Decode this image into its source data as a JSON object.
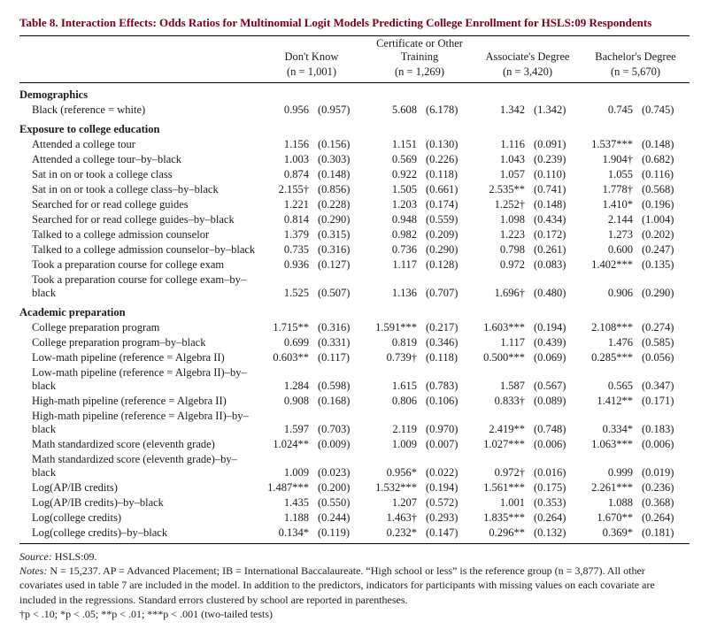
{
  "title": "Table 8. Interaction Effects: Odds Ratios for Multinomial Logit Models Predicting College Enrollment for HSLS:09 Respondents",
  "columns": {
    "c1": {
      "label": "Don't Know",
      "n": "(n = 1,001)"
    },
    "c2": {
      "label": "Certificate or Other Training",
      "n": "(n = 1,269)"
    },
    "c3": {
      "label": "Associate's Degree",
      "n": "(n = 3,420)"
    },
    "c4": {
      "label": "Bachelor's Degree",
      "n": "(n = 5,670)"
    }
  },
  "sections": {
    "demog": {
      "header": "Demographics",
      "rows": {
        "r1": {
          "label": "Black (reference = white)",
          "v1": "0.956",
          "s1": "(0.957)",
          "v2": "5.608",
          "s2": "(6.178)",
          "v3": "1.342",
          "s3": "(1.342)",
          "v4": "0.745",
          "s4": "(0.745)"
        }
      }
    },
    "expo": {
      "header": "Exposure to college education",
      "rows": {
        "r1": {
          "label": "Attended a college tour",
          "v1": "1.156",
          "s1": "(0.156)",
          "v2": "1.151",
          "s2": "(0.130)",
          "v3": "1.116",
          "s3": "(0.091)",
          "v4": "1.537***",
          "s4": "(0.148)"
        },
        "r2": {
          "label": "Attended a college tour–by–black",
          "v1": "1.003",
          "s1": "(0.303)",
          "v2": "0.569",
          "s2": "(0.226)",
          "v3": "1.043",
          "s3": "(0.239)",
          "v4": "1.904†",
          "s4": "(0.682)"
        },
        "r3": {
          "label": "Sat in on or took a college class",
          "v1": "0.874",
          "s1": "(0.148)",
          "v2": "0.922",
          "s2": "(0.118)",
          "v3": "1.057",
          "s3": "(0.110)",
          "v4": "1.055",
          "s4": "(0.116)"
        },
        "r4": {
          "label": "Sat in on or took a college class–by–black",
          "v1": "2.155†",
          "s1": "(0.856)",
          "v2": "1.505",
          "s2": "(0.661)",
          "v3": "2.535**",
          "s3": "(0.741)",
          "v4": "1.778†",
          "s4": "(0.568)"
        },
        "r5": {
          "label": "Searched for or read college guides",
          "v1": "1.221",
          "s1": "(0.228)",
          "v2": "1.203",
          "s2": "(0.174)",
          "v3": "1.252†",
          "s3": "(0.148)",
          "v4": "1.410*",
          "s4": "(0.196)"
        },
        "r6": {
          "label": "Searched for or read college guides–by–black",
          "v1": "0.814",
          "s1": "(0.290)",
          "v2": "0.948",
          "s2": "(0.559)",
          "v3": "1.098",
          "s3": "(0.434)",
          "v4": "2.144",
          "s4": "(1.004)"
        },
        "r7": {
          "label": "Talked to a college admission counselor",
          "v1": "1.379",
          "s1": "(0.315)",
          "v2": "0.982",
          "s2": "(0.209)",
          "v3": "1.223",
          "s3": "(0.172)",
          "v4": "1.273",
          "s4": "(0.202)"
        },
        "r8": {
          "label": "Talked to a college admission counselor–by–black",
          "v1": "0.735",
          "s1": "(0.316)",
          "v2": "0.736",
          "s2": "(0.290)",
          "v3": "0.798",
          "s3": "(0.261)",
          "v4": "0.600",
          "s4": "(0.247)"
        },
        "r9": {
          "label": "Took a preparation course for college exam",
          "v1": "0.936",
          "s1": "(0.127)",
          "v2": "1.117",
          "s2": "(0.128)",
          "v3": "0.972",
          "s3": "(0.083)",
          "v4": "1.402***",
          "s4": "(0.135)"
        },
        "r10": {
          "label": "Took a preparation course for college exam–by–black",
          "v1": "1.525",
          "s1": "(0.507)",
          "v2": "1.136",
          "s2": "(0.707)",
          "v3": "1.696†",
          "s3": "(0.480)",
          "v4": "0.906",
          "s4": "(0.290)"
        }
      }
    },
    "acad": {
      "header": "Academic preparation",
      "rows": {
        "r1": {
          "label": "College preparation program",
          "v1": "1.715**",
          "s1": "(0.316)",
          "v2": "1.591***",
          "s2": "(0.217)",
          "v3": "1.603***",
          "s3": "(0.194)",
          "v4": "2.108***",
          "s4": "(0.274)"
        },
        "r2": {
          "label": "College preparation program–by–black",
          "v1": "0.699",
          "s1": "(0.331)",
          "v2": "0.819",
          "s2": "(0.346)",
          "v3": "1.117",
          "s3": "(0.439)",
          "v4": "1.476",
          "s4": "(0.585)"
        },
        "r3": {
          "label": "Low-math pipeline (reference = Algebra II)",
          "v1": "0.603**",
          "s1": "(0.117)",
          "v2": "0.739†",
          "s2": "(0.118)",
          "v3": "0.500***",
          "s3": "(0.069)",
          "v4": "0.285***",
          "s4": "(0.056)"
        },
        "r4": {
          "label": "Low-math pipeline (reference = Algebra II)–by–black",
          "v1": "1.284",
          "s1": "(0.598)",
          "v2": "1.615",
          "s2": "(0.783)",
          "v3": "1.587",
          "s3": "(0.567)",
          "v4": "0.565",
          "s4": "(0.347)"
        },
        "r5": {
          "label": "High-math pipeline (reference = Algebra II)",
          "v1": "0.908",
          "s1": "(0.168)",
          "v2": "0.806",
          "s2": "(0.106)",
          "v3": "0.833†",
          "s3": "(0.089)",
          "v4": "1.412**",
          "s4": "(0.171)"
        },
        "r6": {
          "label": "High-math pipeline (reference = Algebra II)–by–black",
          "v1": "1.597",
          "s1": "(0.703)",
          "v2": "2.119",
          "s2": "(0.970)",
          "v3": "2.419**",
          "s3": "(0.748)",
          "v4": "0.334*",
          "s4": "(0.183)"
        },
        "r7": {
          "label": "Math standardized score (eleventh grade)",
          "v1": "1.024**",
          "s1": "(0.009)",
          "v2": "1.009",
          "s2": "(0.007)",
          "v3": "1.027***",
          "s3": "(0.006)",
          "v4": "1.063***",
          "s4": "(0.006)"
        },
        "r8": {
          "label": "Math standardized score (eleventh grade)–by–black",
          "v1": "1.009",
          "s1": "(0.023)",
          "v2": "0.956*",
          "s2": "(0.022)",
          "v3": "0.972†",
          "s3": "(0.016)",
          "v4": "0.999",
          "s4": "(0.019)"
        },
        "r9": {
          "label": "Log(AP/IB credits)",
          "v1": "1.487***",
          "s1": "(0.200)",
          "v2": "1.532***",
          "s2": "(0.194)",
          "v3": "1.561***",
          "s3": "(0.175)",
          "v4": "2.261***",
          "s4": "(0.236)"
        },
        "r10": {
          "label": "Log(AP/IB credits)–by–black",
          "v1": "1.435",
          "s1": "(0.550)",
          "v2": "1.207",
          "s2": "(0.572)",
          "v3": "1.001",
          "s3": "(0.353)",
          "v4": "1.088",
          "s4": "(0.368)"
        },
        "r11": {
          "label": "Log(college credits)",
          "v1": "1.188",
          "s1": "(0.244)",
          "v2": "1.463†",
          "s2": "(0.293)",
          "v3": "1.835***",
          "s3": "(0.264)",
          "v4": "1.670**",
          "s4": "(0.264)"
        },
        "r12": {
          "label": "Log(college credits)–by–black",
          "v1": "0.134*",
          "s1": "(0.119)",
          "v2": "0.232*",
          "s2": "(0.147)",
          "v3": "0.296**",
          "s3": "(0.132)",
          "v4": "0.369*",
          "s4": "(0.181)"
        }
      }
    }
  },
  "notes": {
    "source_label": "Source:",
    "source": "HSLS:09.",
    "notes_label": "Notes:",
    "body": "N = 15,237. AP = Advanced Placement; IB = International Baccalaureate. “High school or less” is the reference group (n = 3,877). All other covariates used in table 7 are included in the model. In addition to the predictors, indicators for participants with missing values on each covariate are included in the regressions. Standard errors clustered by school are reported in parentheses.",
    "sig": "†p < .10; *p < .05; **p < .01; ***p < .001  (two-tailed tests)"
  }
}
